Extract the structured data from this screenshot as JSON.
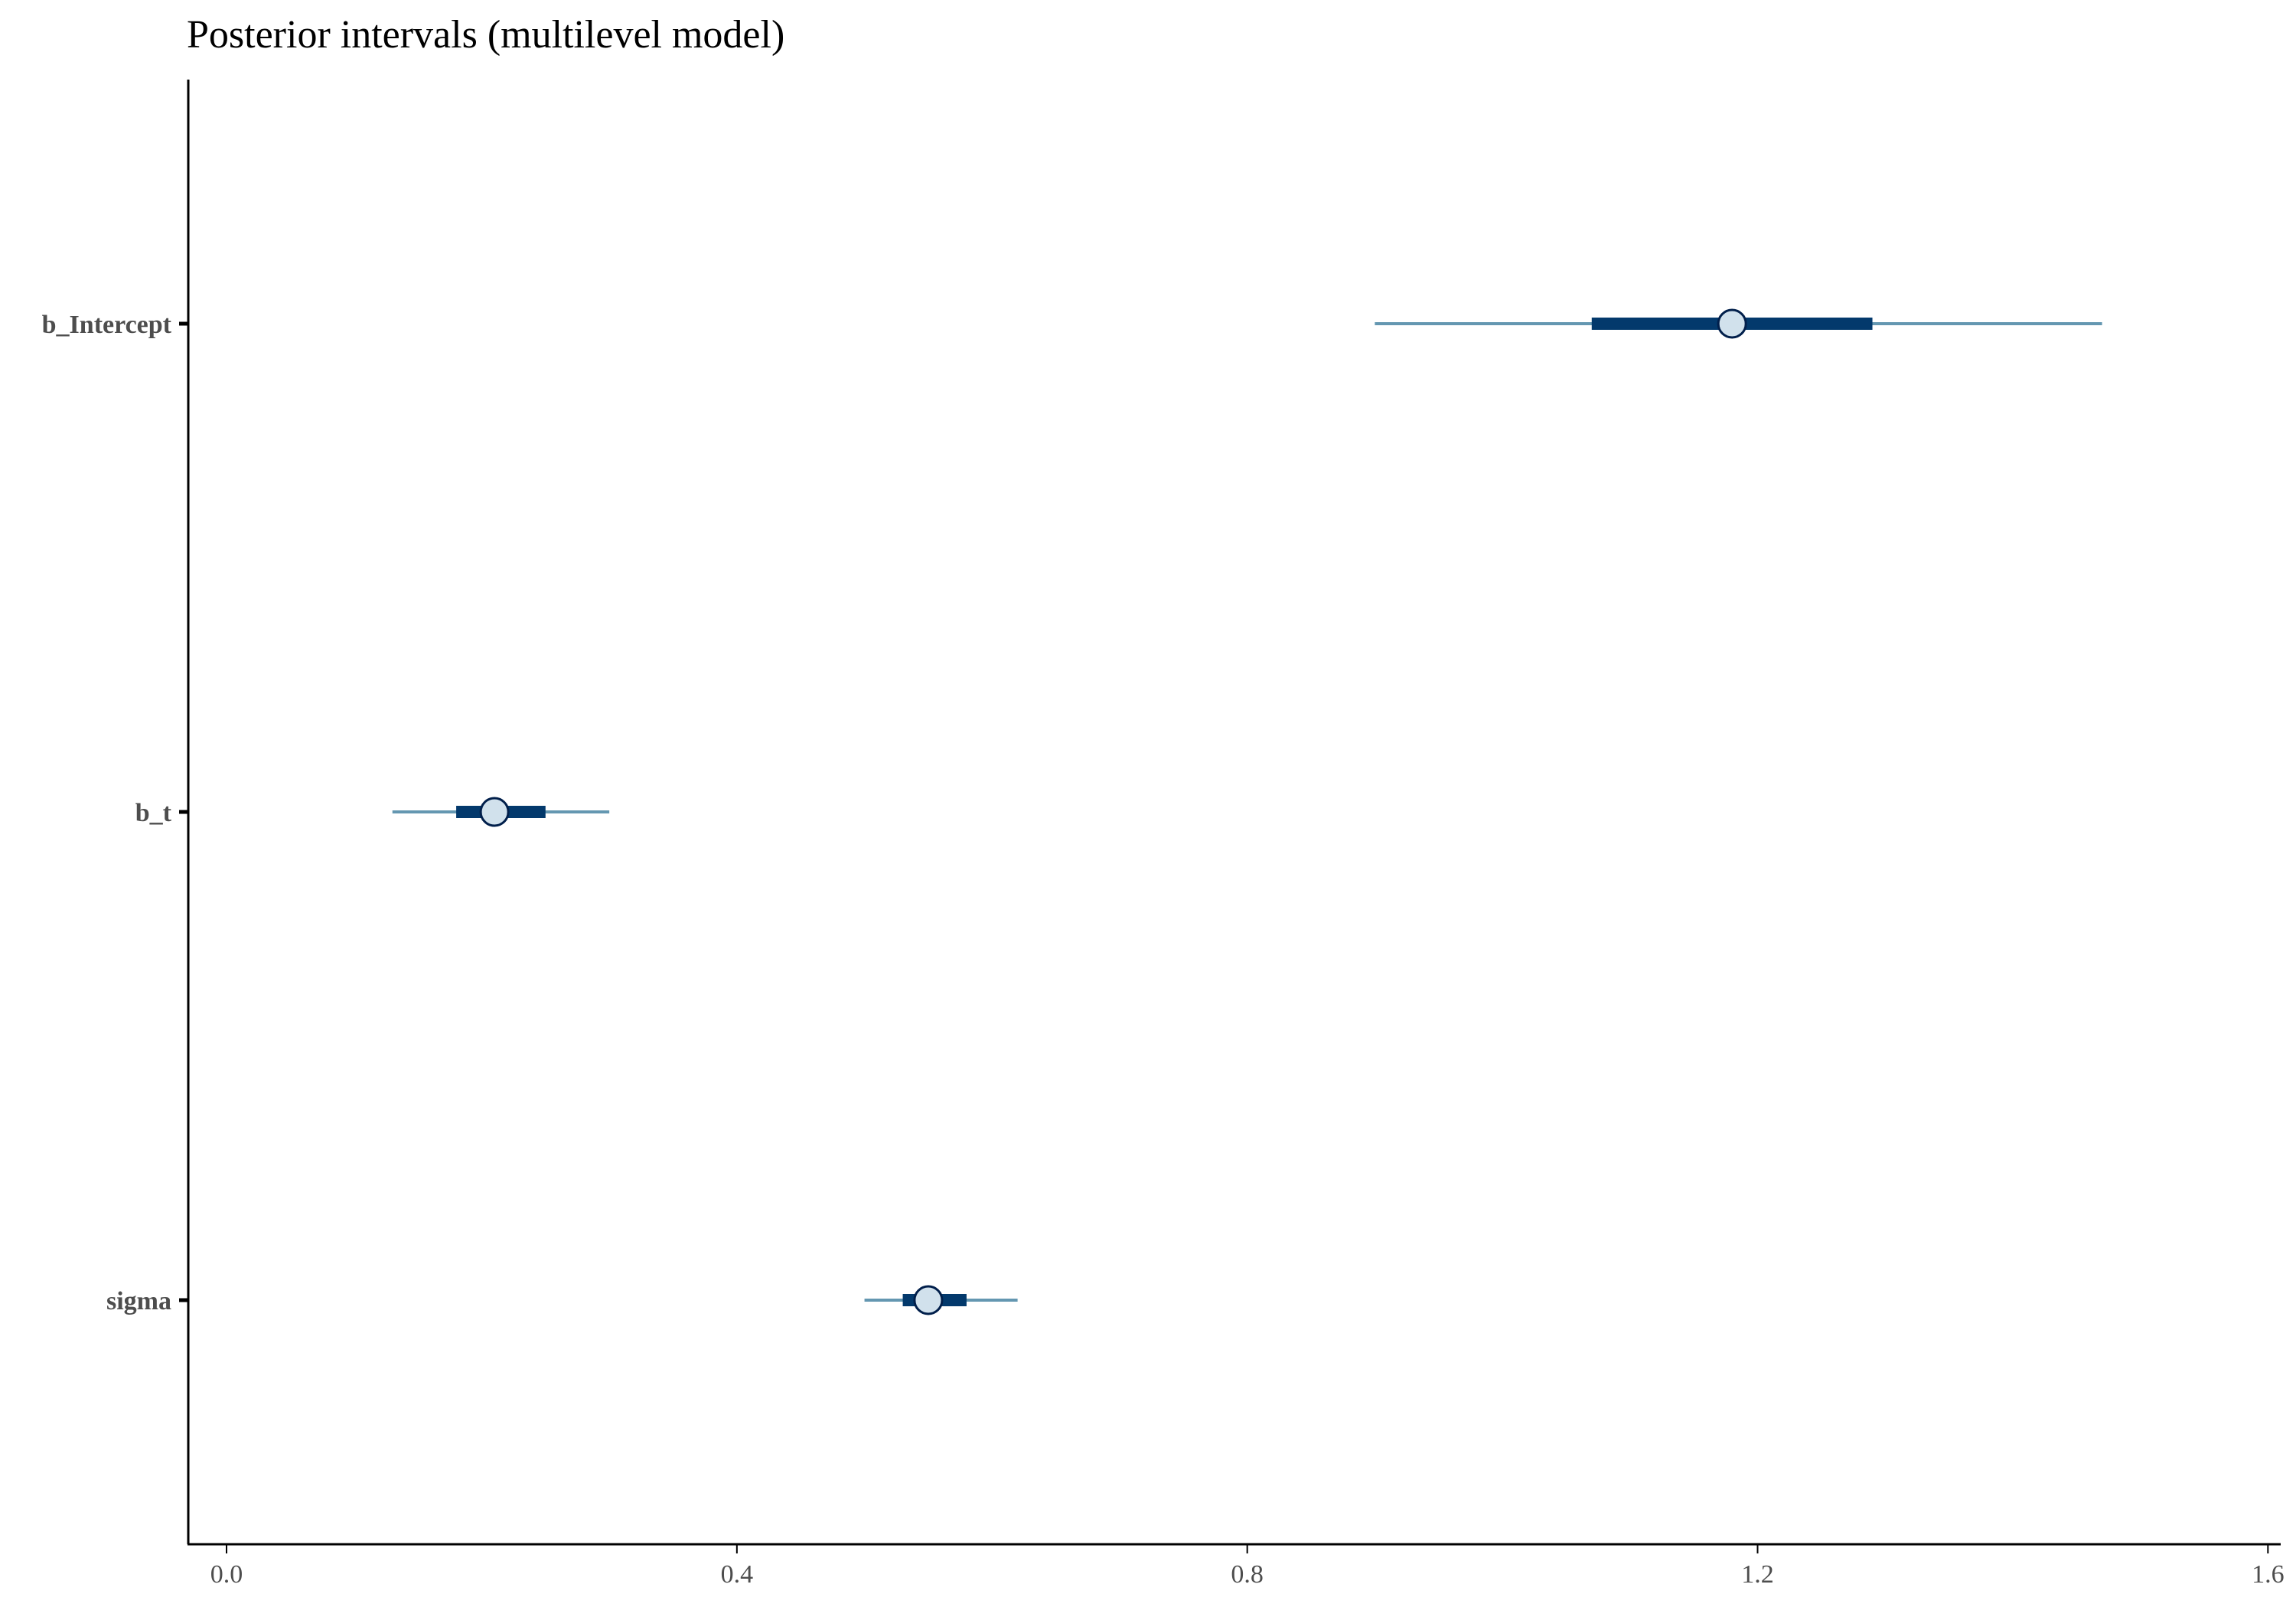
{
  "chart_data": {
    "type": "interval",
    "title": "Posterior intervals (multilevel model)",
    "xlabel": "",
    "ylabel": "",
    "xlim": [
      -0.03,
      1.61
    ],
    "x_ticks": [
      0.0,
      0.4,
      0.8,
      1.2,
      1.6
    ],
    "x_tick_labels": [
      "0.0",
      "0.4",
      "0.8",
      "1.2",
      "1.6"
    ],
    "grid": false,
    "parameters": [
      {
        "label": "b_Intercept",
        "point": 1.18,
        "inner": [
          1.07,
          1.29
        ],
        "outer": [
          0.9,
          1.47
        ]
      },
      {
        "label": "b_t",
        "point": 0.21,
        "inner": [
          0.18,
          0.25
        ],
        "outer": [
          0.13,
          0.3
        ]
      },
      {
        "label": "sigma",
        "point": 0.55,
        "inner": [
          0.53,
          0.58
        ],
        "outer": [
          0.5,
          0.62
        ]
      }
    ],
    "colors": {
      "outer_line": "#6497b1",
      "inner_line": "#03396c",
      "point_fill": "#d1e1ec",
      "point_stroke": "#011f4b",
      "axis": "#000000"
    }
  }
}
